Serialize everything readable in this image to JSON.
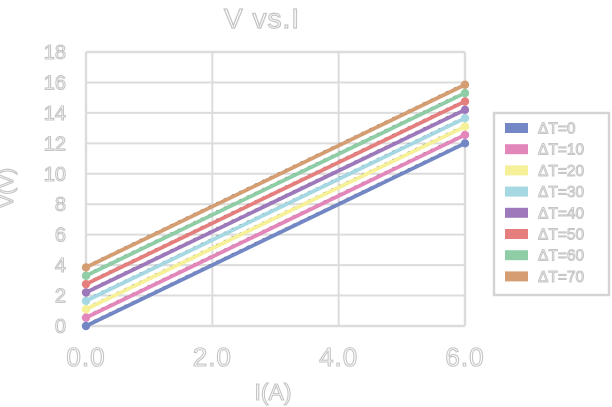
{
  "chart_data": {
    "type": "line",
    "title": "V vs.I",
    "xlabel": "I(A)",
    "ylabel": "V(V)",
    "xlim": [
      0,
      6
    ],
    "ylim": [
      0,
      18
    ],
    "grid": true,
    "legend_position": "right",
    "x": [
      0,
      6
    ],
    "x_tick_values": [
      0,
      2,
      4,
      6
    ],
    "x_tick_labels": [
      "0.0",
      "2.0",
      "4.0",
      "6.0"
    ],
    "y_tick_values": [
      0,
      2,
      4,
      6,
      8,
      10,
      12,
      14,
      16,
      18
    ],
    "y_tick_labels": [
      "0",
      "2",
      "4",
      "6",
      "8",
      "10",
      "12",
      "14",
      "16",
      "18"
    ],
    "series": [
      {
        "name": "ΔT=0",
        "color": "#7287c4",
        "values": [
          0.0,
          12.0
        ]
      },
      {
        "name": "ΔT=10",
        "color": "#e387bb",
        "values": [
          0.55,
          12.55
        ]
      },
      {
        "name": "ΔT=20",
        "color": "#f6f098",
        "values": [
          1.1,
          13.1
        ]
      },
      {
        "name": "ΔT=30",
        "color": "#a5d8e2",
        "values": [
          1.65,
          13.65
        ]
      },
      {
        "name": "ΔT=40",
        "color": "#9d79bb",
        "values": [
          2.2,
          14.2
        ]
      },
      {
        "name": "ΔT=50",
        "color": "#e57f7e",
        "values": [
          2.75,
          14.75
        ]
      },
      {
        "name": "ΔT=60",
        "color": "#8fcda6",
        "values": [
          3.3,
          15.3
        ]
      },
      {
        "name": "ΔT=70",
        "color": "#d49e72",
        "values": [
          3.85,
          15.85
        ]
      }
    ],
    "trendline_style": "dashed-black"
  },
  "colors": {
    "background": "#ffffff",
    "grid": "#dcdcdc",
    "text_outline": "#c5c5c5",
    "legend_border": "#d4d4d4",
    "trendline": "#222222"
  }
}
